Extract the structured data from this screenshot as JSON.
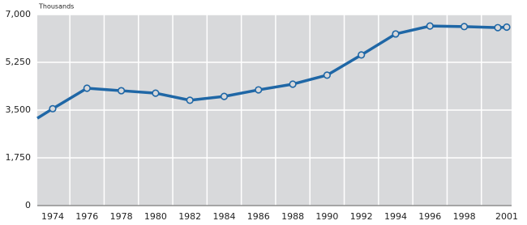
{
  "chart_data": {
    "type": "line",
    "y_unit": "Thousands",
    "categories": [
      null,
      "1974",
      "1976",
      "1978",
      "1980",
      "1982",
      "1984",
      "1986",
      "1988",
      "1990",
      "1992",
      "1994",
      "1996",
      "1998",
      null,
      "2001"
    ],
    "values": [
      3200,
      3550,
      4300,
      4210,
      4120,
      3860,
      4000,
      4240,
      4450,
      4780,
      5520,
      6290,
      6580,
      6560,
      6520,
      6540
    ],
    "color": "#1f67a6",
    "ylim": [
      0,
      7000
    ],
    "yticks": [
      0,
      {
        "value": 1750,
        "label": "1,750"
      },
      {
        "value": 3500,
        "label": "3,500"
      },
      {
        "value": 5250,
        "label": "5,250"
      },
      {
        "value": 7000,
        "label": "7,000"
      }
    ],
    "grid": true
  }
}
